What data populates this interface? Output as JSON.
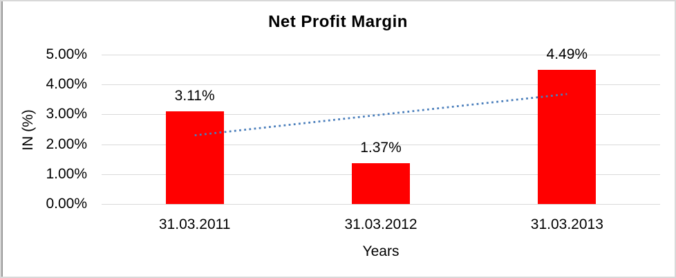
{
  "chart_data": {
    "type": "bar",
    "title": "Net Profit Margin",
    "xlabel": "Years",
    "ylabel": "IN (%)",
    "categories": [
      "31.03.2011",
      "31.03.2012",
      "31.03.2013"
    ],
    "values": [
      3.11,
      1.37,
      4.49
    ],
    "data_labels": [
      "3.11%",
      "1.37%",
      "4.49%"
    ],
    "y_ticks": [
      {
        "value": 0,
        "label": "0.00%"
      },
      {
        "value": 1,
        "label": "1.00%"
      },
      {
        "value": 2,
        "label": "2.00%"
      },
      {
        "value": 3,
        "label": "3.00%"
      },
      {
        "value": 4,
        "label": "4.00%"
      },
      {
        "value": 5,
        "label": "5.00%"
      }
    ],
    "ylim": [
      0,
      5
    ],
    "grid": true,
    "legend": "none",
    "bar_color": "#ff0000",
    "gridline_color": "#d9d9d9",
    "trendline": {
      "style": "dotted",
      "color": "#4a7ebb",
      "points": [
        {
          "category_index": 0,
          "value": 2.3
        },
        {
          "category_index": 2,
          "value": 3.68
        }
      ]
    }
  }
}
